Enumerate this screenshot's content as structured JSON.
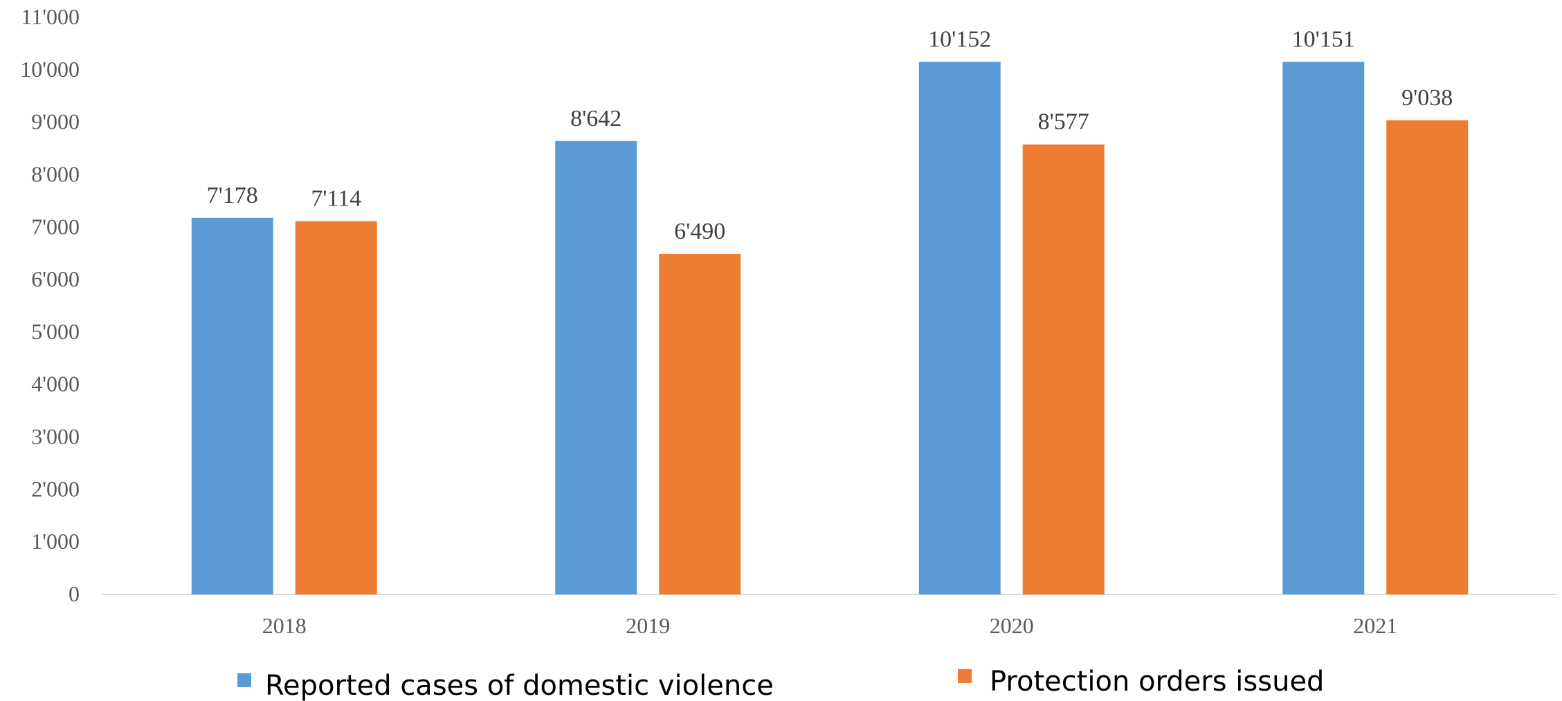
{
  "chart_data": {
    "type": "bar",
    "categories": [
      "2018",
      "2019",
      "2020",
      "2021"
    ],
    "series": [
      {
        "name": "Reported cases of domestic violence",
        "values": [
          7178,
          8642,
          10152,
          10151
        ],
        "labels": [
          "7'178",
          "8'642",
          "10'152",
          "10'151"
        ],
        "color": "#5B9BD5"
      },
      {
        "name": "Protection orders issued",
        "values": [
          7114,
          6490,
          8577,
          9038
        ],
        "labels": [
          "7'114",
          "6'490",
          "8'577",
          "9'038"
        ],
        "color": "#ED7D31"
      }
    ],
    "ylim": [
      0,
      11000
    ],
    "yticks": [
      0,
      1000,
      2000,
      3000,
      4000,
      5000,
      6000,
      7000,
      8000,
      9000,
      10000,
      11000
    ],
    "ytick_labels": [
      "0",
      "1'000",
      "2'000",
      "3'000",
      "4'000",
      "5'000",
      "6'000",
      "7'000",
      "8'000",
      "9'000",
      "10'000",
      "11'000"
    ],
    "grid": false,
    "legend_position": "bottom"
  }
}
